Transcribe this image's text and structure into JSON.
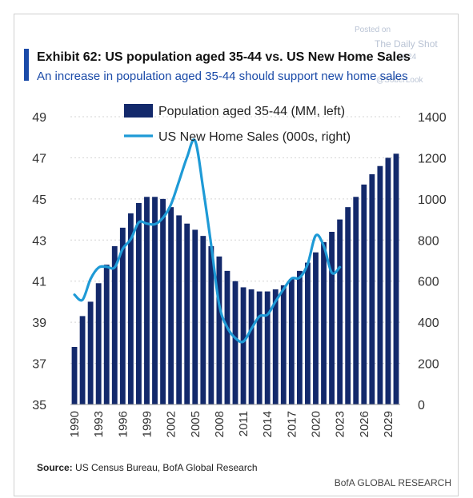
{
  "watermark": {
    "line1": "Posted on",
    "line2": "The Daily Shot",
    "line3": "2024",
    "line4": "@SoberLook"
  },
  "header": {
    "title": "Exhibit 62: US population aged 35-44 vs. US New Home Sales",
    "subtitle": "An increase in population aged 35-44 should support new home sales"
  },
  "footer": {
    "source_label": "Source:",
    "source_text": "US Census Bureau, BofA Global Research",
    "brand": "BofA GLOBAL RESEARCH"
  },
  "colors": {
    "bars": "#13296b",
    "line": "#1e9ad6",
    "accent": "#1a4aa8"
  },
  "chart_data": {
    "type": "bar",
    "x": [
      1990,
      1991,
      1992,
      1993,
      1994,
      1995,
      1996,
      1997,
      1998,
      1999,
      2000,
      2001,
      2002,
      2003,
      2004,
      2005,
      2006,
      2007,
      2008,
      2009,
      2010,
      2011,
      2012,
      2013,
      2014,
      2015,
      2016,
      2017,
      2018,
      2019,
      2020,
      2021,
      2022,
      2023,
      2024,
      2025,
      2026,
      2027,
      2028,
      2029,
      2030
    ],
    "x_tick_labels": [
      "1990",
      "1993",
      "1996",
      "1999",
      "2002",
      "2005",
      "2008",
      "2011",
      "2014",
      "2017",
      "2020",
      "2023",
      "2026",
      "2029"
    ],
    "series": [
      {
        "name": "Population aged 35-44 (MM, left)",
        "type": "bar",
        "axis": "left",
        "values": [
          37.8,
          39.3,
          40.0,
          40.9,
          41.8,
          42.7,
          43.6,
          44.3,
          44.8,
          45.1,
          45.1,
          45.0,
          44.6,
          44.2,
          43.8,
          43.5,
          43.2,
          42.7,
          42.2,
          41.5,
          41.0,
          40.7,
          40.6,
          40.5,
          40.5,
          40.6,
          40.8,
          41.1,
          41.5,
          41.9,
          42.4,
          42.9,
          43.4,
          44.0,
          44.6,
          45.1,
          45.7,
          46.2,
          46.6,
          47.0,
          47.2
        ]
      },
      {
        "name": "US New Home Sales (000s, right)",
        "type": "line",
        "axis": "right",
        "x": [
          1990,
          1991,
          1992,
          1993,
          1994,
          1995,
          1996,
          1997,
          1998,
          1999,
          2000,
          2001,
          2002,
          2003,
          2004,
          2005,
          2006,
          2007,
          2008,
          2009,
          2010,
          2011,
          2012,
          2013,
          2014,
          2015,
          2016,
          2017,
          2018,
          2019,
          2020,
          2021,
          2022,
          2023
        ],
        "values": [
          534,
          509,
          610,
          666,
          670,
          667,
          757,
          804,
          886,
          880,
          877,
          908,
          973,
          1086,
          1203,
          1283,
          1051,
          776,
          485,
          375,
          323,
          306,
          368,
          429,
          437,
          501,
          561,
          613,
          617,
          683,
          822,
          771,
          641,
          668
        ]
      }
    ],
    "y_left": {
      "ylim": [
        35,
        49
      ],
      "ticks": [
        "35",
        "37",
        "39",
        "41",
        "43",
        "45",
        "47",
        "49"
      ]
    },
    "y_right": {
      "ylim": [
        0,
        1400
      ],
      "ticks": [
        "0",
        "200",
        "400",
        "600",
        "800",
        "1000",
        "1200",
        "1400"
      ]
    },
    "grid": "horizontal",
    "legend_position": "top-center"
  }
}
